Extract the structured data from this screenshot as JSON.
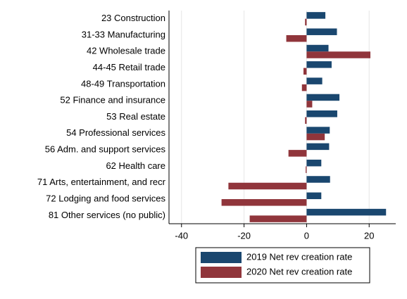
{
  "chart_data": {
    "type": "bar",
    "orientation": "horizontal",
    "categories": [
      "23 Construction",
      "31-33 Manufacturing",
      "42 Wholesale trade",
      "44-45 Retail trade",
      "48-49 Transportation",
      "52 Finance and insurance",
      "53 Real estate",
      "54 Professional services",
      "56 Adm. and support services",
      "62 Health care",
      "71 Arts, entertainment, and recr",
      "72 Lodging and food services",
      "81 Other services (no public)"
    ],
    "series": [
      {
        "name": "2019 Net rev creation rate",
        "color": "#1a476f",
        "values": [
          6,
          9.7,
          7,
          8,
          5,
          10.5,
          9.8,
          7.4,
          7.2,
          4.7,
          7.5,
          4.7,
          25.4
        ]
      },
      {
        "name": "2020 Net rev creation rate",
        "color": "#90353b",
        "values": [
          -0.5,
          -6.5,
          20.4,
          -1,
          -1.5,
          1.8,
          -0.5,
          5.8,
          -5.8,
          -0.3,
          -25,
          -27.2,
          -18.2
        ]
      }
    ],
    "xlim": [
      -44,
      28.5
    ],
    "xticks": [
      -40,
      -20,
      0,
      20
    ],
    "grid": true,
    "legend": "bottom"
  }
}
